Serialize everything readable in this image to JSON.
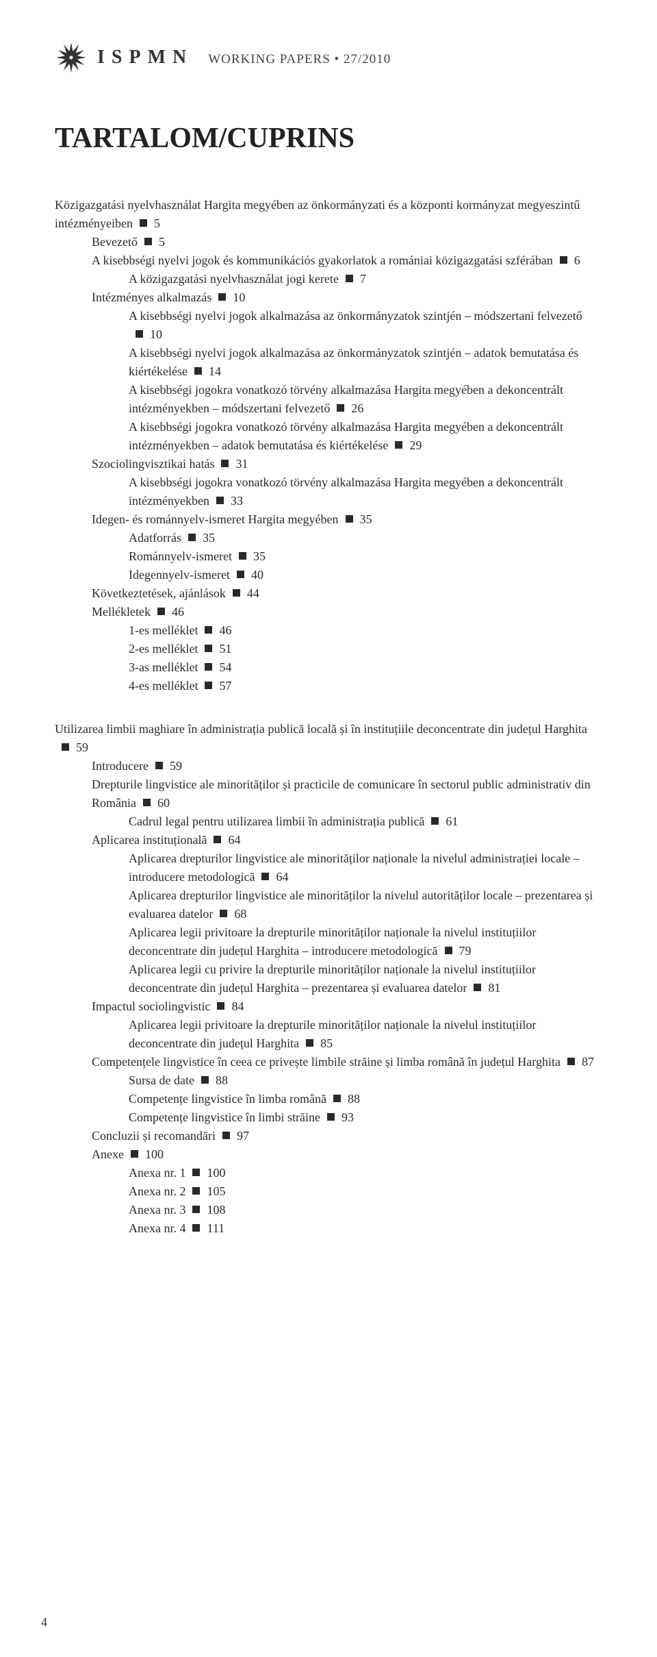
{
  "header": {
    "acronym": "ISPMN",
    "subtitle": "WORKING PAPERS • 27/2010"
  },
  "title": "TARTALOM/CUPRINS",
  "page_number": "4",
  "toc_hu": [
    {
      "lvl": 0,
      "pre": "Közigazgatási nyelvhasználat Hargita megyében az önkormányzati és a központi kormányzat megyeszintű intézményeiben",
      "page": "5"
    },
    {
      "lvl": 1,
      "pre": "Bevezető",
      "page": "5"
    },
    {
      "lvl": 1,
      "pre": "A kisebbségi nyelvi jogok és kommunikációs gyakorlatok a romániai közigazgatási szférában",
      "page": "6"
    },
    {
      "lvl": 2,
      "pre": "A közigazgatási nyelvhasználat jogi kerete",
      "page": "7"
    },
    {
      "lvl": 1,
      "pre": "Intézményes alkalmazás",
      "page": "10"
    },
    {
      "lvl": 2,
      "pre": "A kisebbségi nyelvi jogok alkalmazása az önkormányzatok szintjén – módszertani felvezető",
      "page": "10"
    },
    {
      "lvl": 2,
      "pre": "A kisebbségi nyelvi jogok alkalmazása az önkormányzatok szintjén – adatok bemutatása és kiértékelése",
      "page": "14"
    },
    {
      "lvl": 2,
      "pre": "A kisebbségi jogokra vonatkozó törvény alkalmazása Hargita megyében a dekoncentrált intézményekben – módszertani felvezető",
      "page": "26"
    },
    {
      "lvl": 2,
      "pre": "A kisebbségi jogokra vonatkozó törvény alkalmazása Hargita megyében a dekoncentrált intézményekben – adatok bemutatása és kiértékelése",
      "page": "29"
    },
    {
      "lvl": 1,
      "pre": "Szociolingvisztikai hatás",
      "page": "31"
    },
    {
      "lvl": 2,
      "pre": "A kisebbségi jogokra vonatkozó törvény alkalmazása Hargita megyében a dekoncentrált intézményekben",
      "page": "33"
    },
    {
      "lvl": 1,
      "pre": "Idegen- és románnyelv-ismeret Hargita megyében",
      "page": "35"
    },
    {
      "lvl": 2,
      "pre": "Adatforrás",
      "page": "35"
    },
    {
      "lvl": 2,
      "pre": "Románnyelv-ismeret",
      "page": "35"
    },
    {
      "lvl": 2,
      "pre": "Idegennyelv-ismeret",
      "page": "40"
    },
    {
      "lvl": 1,
      "pre": "Következtetések, ajánlások",
      "page": "44"
    },
    {
      "lvl": 1,
      "pre": "Mellékletek",
      "page": "46"
    },
    {
      "lvl": 2,
      "pre": "1-es melléklet",
      "page": "46"
    },
    {
      "lvl": 2,
      "pre": "2-es melléklet",
      "page": "51"
    },
    {
      "lvl": 2,
      "pre": "3-as melléklet",
      "page": "54"
    },
    {
      "lvl": 2,
      "pre": "4-es melléklet",
      "page": "57"
    }
  ],
  "toc_ro": [
    {
      "lvl": 0,
      "pre": "Utilizarea limbii maghiare în administrația publică locală și în instituțiile deconcentrate din județul Harghita",
      "page": "59"
    },
    {
      "lvl": 1,
      "pre": "Introducere",
      "page": "59"
    },
    {
      "lvl": 1,
      "pre": "Drepturile lingvistice ale minorităților și practicile de comunicare în sectorul public administrativ din România",
      "page": "60"
    },
    {
      "lvl": 2,
      "pre": "Cadrul legal pentru utilizarea limbii în administrația publică",
      "page": "61"
    },
    {
      "lvl": 1,
      "pre": "Aplicarea instituțională",
      "page": "64"
    },
    {
      "lvl": 2,
      "pre": "Aplicarea drepturilor lingvistice ale minorităților naționale la nivelul administrației locale – introducere metodologică",
      "page": "64"
    },
    {
      "lvl": 2,
      "pre": "Aplicarea drepturilor lingvistice ale minorităților la nivelul autorităților locale – prezentarea și evaluarea datelor",
      "page": "68"
    },
    {
      "lvl": 2,
      "pre": "Aplicarea legii privitoare la drepturile minorităților naționale la nivelul instituțiilor deconcentrate din județul Harghita – introducere metodologică",
      "page": "79"
    },
    {
      "lvl": 2,
      "pre": "Aplicarea legii cu privire la drepturile minorităților naționale la nivelul instituțiilor deconcentrate din județul Harghita – prezentarea și evaluarea datelor",
      "page": "81"
    },
    {
      "lvl": 1,
      "pre": "Impactul sociolingvistic",
      "page": "84"
    },
    {
      "lvl": 2,
      "pre": "Aplicarea legii privitoare la drepturile minorităților naționale la nivelul instituțiilor deconcentrate din județul Harghita",
      "page": "85"
    },
    {
      "lvl": 1,
      "pre": "Competențele lingvistice în ceea ce privește limbile străine și limba română în județul Harghita",
      "page": "87"
    },
    {
      "lvl": 2,
      "pre": "Sursa de date",
      "page": "88"
    },
    {
      "lvl": 2,
      "pre": "Competențe lingvistice în limba română",
      "page": "88"
    },
    {
      "lvl": 2,
      "pre": "Competențe lingvistice în limbi străine",
      "page": "93"
    },
    {
      "lvl": 1,
      "pre": "Concluzii și recomandări",
      "page": "97"
    },
    {
      "lvl": 1,
      "pre": "Anexe",
      "page": "100"
    },
    {
      "lvl": 2,
      "pre": "Anexa nr. 1",
      "page": "100"
    },
    {
      "lvl": 2,
      "pre": "Anexa nr. 2",
      "page": "105"
    },
    {
      "lvl": 2,
      "pre": "Anexa nr. 3",
      "page": "108"
    },
    {
      "lvl": 2,
      "pre": "Anexa nr. 4",
      "page": "111"
    }
  ]
}
